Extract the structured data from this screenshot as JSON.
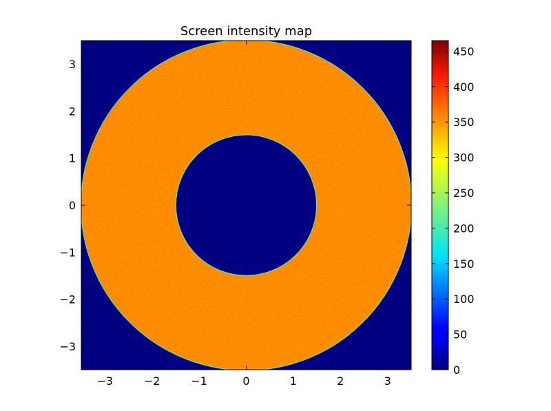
{
  "chart_data": {
    "type": "heatmap",
    "title": "Screen intensity map",
    "xlabel": "",
    "ylabel": "",
    "xlim": [
      -3.5,
      3.5
    ],
    "ylim": [
      -3.5,
      3.5
    ],
    "x_ticks": [
      -3,
      -2,
      -1,
      0,
      1,
      2,
      3
    ],
    "x_tick_labels": [
      "−3",
      "−2",
      "−1",
      "0",
      "1",
      "2",
      "3"
    ],
    "y_ticks": [
      -3,
      -2,
      -1,
      0,
      1,
      2,
      3
    ],
    "y_tick_labels": [
      "−3",
      "−2",
      "−1",
      "0",
      "1",
      "2",
      "3"
    ],
    "grid": false,
    "colormap": "jet",
    "colorbar": {
      "range": [
        0,
        465
      ],
      "ticks": [
        0,
        50,
        100,
        150,
        200,
        250,
        300,
        350,
        400,
        450
      ],
      "tick_labels": [
        "0",
        "50",
        "100",
        "150",
        "200",
        "250",
        "300",
        "350",
        "400",
        "450"
      ]
    },
    "annulus": {
      "inner_radius": 1.5,
      "outer_radius": 3.5,
      "typical_value": 350,
      "value_range": [
        320,
        400
      ],
      "background_value": 0
    }
  }
}
